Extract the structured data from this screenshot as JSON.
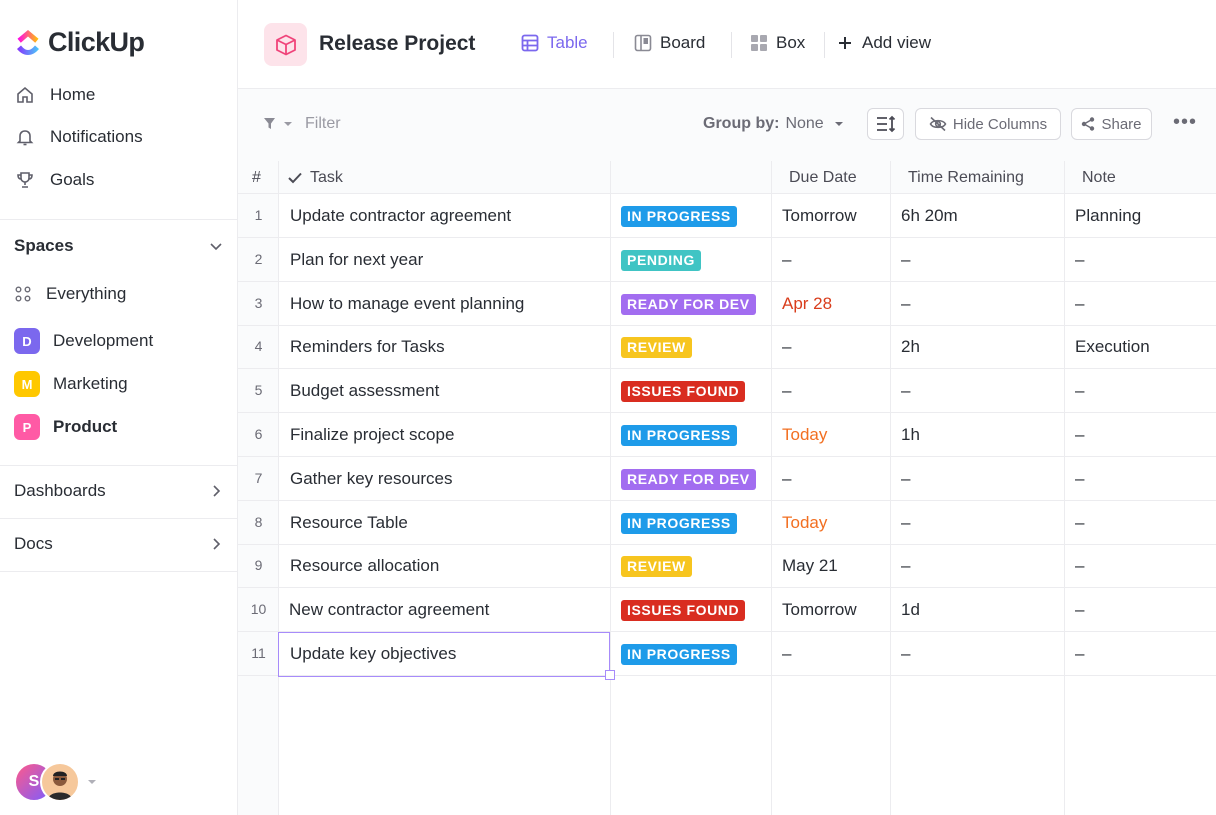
{
  "colors": {
    "accent": "#7b68ee",
    "in_progress": "#1e9be9",
    "pending": "#40c4c4",
    "ready_for_dev": "#a26df0",
    "review": "#f7c51f",
    "issues_found": "#d92d20",
    "date_red": "#d93d1c",
    "date_orange": "#f26f21"
  },
  "brand": {
    "name": "ClickUp"
  },
  "sidebar": {
    "nav": [
      {
        "label": "Home",
        "icon": "home-icon"
      },
      {
        "label": "Notifications",
        "icon": "bell-icon"
      },
      {
        "label": "Goals",
        "icon": "trophy-icon"
      }
    ],
    "spaces_label": "Spaces",
    "everything_label": "Everything",
    "spaces": [
      {
        "letter": "D",
        "label": "Development",
        "color": "#7b68ee"
      },
      {
        "letter": "M",
        "label": "Marketing",
        "color": "#ffc800"
      },
      {
        "letter": "P",
        "label": "Product",
        "color": "#ff5aa5"
      }
    ],
    "dashboards_label": "Dashboards",
    "docs_label": "Docs",
    "avatar_letter": "S"
  },
  "header": {
    "project_title": "Release Project",
    "views": [
      {
        "label": "Table",
        "icon": "table-icon",
        "active": true
      },
      {
        "label": "Board",
        "icon": "board-icon",
        "active": false
      },
      {
        "label": "Box",
        "icon": "box-icon",
        "active": false
      }
    ],
    "add_view_label": "Add view"
  },
  "toolbar": {
    "filter_label": "Filter",
    "group_by_label": "Group by:",
    "group_by_value": "None",
    "hide_columns_label": "Hide Columns",
    "share_label": "Share"
  },
  "table": {
    "columns": {
      "num": "#",
      "task": "Task",
      "due": "Due Date",
      "time": "Time Remaining",
      "note": "Note"
    },
    "rows": [
      {
        "num": "1",
        "task": "Update contractor agreement",
        "status": "IN PROGRESS",
        "status_color": "#1e9be9",
        "due": "Tomorrow",
        "due_color": "#292d34",
        "time": "6h 20m",
        "note": "Planning"
      },
      {
        "num": "2",
        "task": "Plan for next year",
        "status": "PENDING",
        "status_color": "#40c4c4",
        "due": "–",
        "due_color": "#292d34",
        "time": "–",
        "note": "–"
      },
      {
        "num": "3",
        "task": "How to manage event planning",
        "status": "READY FOR DEV",
        "status_color": "#a26df0",
        "due": "Apr 28",
        "due_color": "#d93d1c",
        "time": "–",
        "note": "–"
      },
      {
        "num": "4",
        "task": "Reminders for Tasks",
        "status": "REVIEW",
        "status_color": "#f7c51f",
        "due": "–",
        "due_color": "#292d34",
        "time": "2h",
        "note": "Execution"
      },
      {
        "num": "5",
        "task": "Budget assessment",
        "status": "ISSUES FOUND",
        "status_color": "#d92d20",
        "due": "–",
        "due_color": "#292d34",
        "time": "–",
        "note": "–"
      },
      {
        "num": "6",
        "task": "Finalize project scope",
        "status": "IN PROGRESS",
        "status_color": "#1e9be9",
        "due": "Today",
        "due_color": "#f26f21",
        "time": "1h",
        "note": "–"
      },
      {
        "num": "7",
        "task": "Gather key resources",
        "status": "READY FOR DEV",
        "status_color": "#a26df0",
        "due": "–",
        "due_color": "#292d34",
        "time": "–",
        "note": "–"
      },
      {
        "num": "8",
        "task": "Resource Table",
        "status": "IN PROGRESS",
        "status_color": "#1e9be9",
        "due": "Today",
        "due_color": "#f26f21",
        "time": "–",
        "note": "–"
      },
      {
        "num": "9",
        "task": "Resource allocation",
        "status": "REVIEW",
        "status_color": "#f7c51f",
        "due": "May 21",
        "due_color": "#292d34",
        "time": "–",
        "note": "–"
      },
      {
        "num": "10",
        "task": "New contractor agreement",
        "status": "ISSUES FOUND",
        "status_color": "#d92d20",
        "due": "Tomorrow",
        "due_color": "#292d34",
        "time": "1d",
        "note": "–"
      },
      {
        "num": "11",
        "task": "Update key objectives",
        "status": "IN PROGRESS",
        "status_color": "#1e9be9",
        "due": "–",
        "due_color": "#292d34",
        "time": "–",
        "note": "–"
      }
    ]
  }
}
